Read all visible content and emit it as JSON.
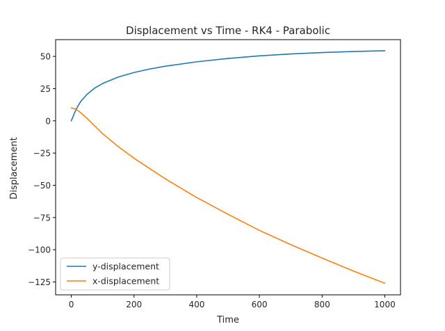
{
  "chart_data": {
    "type": "line",
    "title": "Displacement vs Time - RK4 - Parabolic",
    "xlabel": "Time",
    "ylabel": "Displacement",
    "xlim": [
      -50,
      1050
    ],
    "ylim": [
      -135,
      63
    ],
    "xticks": [
      0,
      200,
      400,
      600,
      800,
      1000
    ],
    "yticks": [
      50,
      25,
      0,
      -25,
      -50,
      -75,
      -100,
      -125
    ],
    "xtick_labels": [
      "0",
      "200",
      "400",
      "600",
      "800",
      "1000"
    ],
    "ytick_labels": [
      "50",
      "25",
      "0",
      "−25",
      "−50",
      "−75",
      "−100",
      "−125"
    ],
    "grid": false,
    "legend_position": "lower-left",
    "series": [
      {
        "name": "y-displacement",
        "color": "#1f77b4",
        "x": [
          0,
          10,
          20,
          30,
          50,
          75,
          100,
          150,
          200,
          250,
          300,
          400,
          500,
          600,
          700,
          800,
          900,
          1000
        ],
        "y": [
          0,
          6,
          11,
          15,
          20.5,
          25.5,
          29,
          34,
          37.5,
          40.2,
          42.4,
          45.8,
          48.4,
          50.4,
          51.9,
          53,
          53.8,
          54.4
        ]
      },
      {
        "name": "x-displacement",
        "color": "#ff7f0e",
        "x": [
          0,
          10,
          20,
          30,
          50,
          75,
          100,
          150,
          200,
          300,
          400,
          500,
          600,
          700,
          800,
          900,
          1000
        ],
        "y": [
          10,
          9.5,
          8.2,
          6.3,
          2,
          -4,
          -10,
          -20,
          -29,
          -45,
          -59.5,
          -72.5,
          -85,
          -96,
          -106.5,
          -116.5,
          -126
        ]
      }
    ]
  }
}
